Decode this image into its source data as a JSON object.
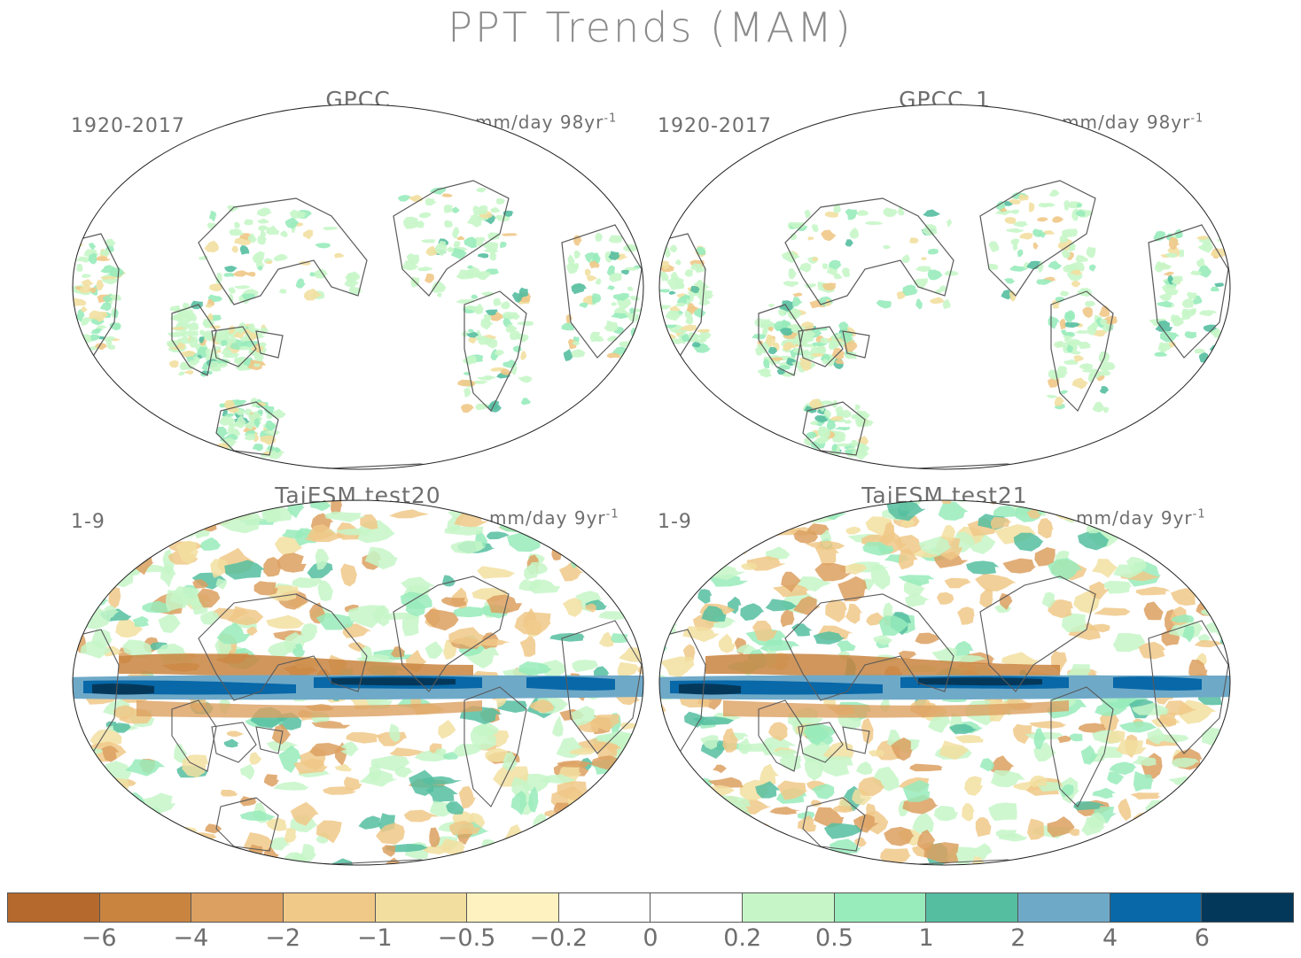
{
  "figure": {
    "title": "PPT Trends (MAM)"
  },
  "panels": [
    {
      "title": "GPCC",
      "period": "1920-2017",
      "units": "mm/day 98yr",
      "units_exp": "-1",
      "field": "obs"
    },
    {
      "title": "GPCC_1",
      "period": "1920-2017",
      "units": "mm/day 98yr",
      "units_exp": "-1",
      "field": "obs"
    },
    {
      "title": "TaiESM test20",
      "period": "1-9",
      "units": "mm/day 9yr",
      "units_exp": "-1",
      "field": "model"
    },
    {
      "title": "TaiESM test21",
      "period": "1-9",
      "units": "mm/day 9yr",
      "units_exp": "-1",
      "field": "model"
    }
  ],
  "colorbar": {
    "colors": [
      "#b5692c",
      "#c98440",
      "#dca060",
      "#f0c887",
      "#f2dfa0",
      "#fdf2c0",
      "#ffffff",
      "#ffffff",
      "#c6f6c8",
      "#98ebbb",
      "#55bea0",
      "#6fa9c8",
      "#0868a8",
      "#04385a"
    ],
    "labels": [
      "-6",
      "-4",
      "-2",
      "-1",
      "-0.5",
      "-0.2",
      "0",
      "0.2",
      "0.5",
      "1",
      "2",
      "4",
      "6"
    ]
  }
}
